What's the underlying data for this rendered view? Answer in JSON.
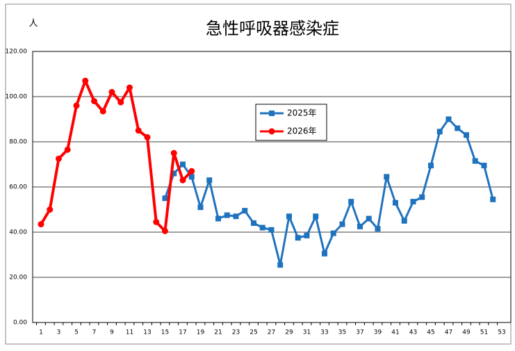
{
  "chart_data": {
    "type": "line",
    "title": "急性呼吸器感染症",
    "y_label": "人",
    "categories": [
      1,
      null,
      3,
      null,
      5,
      null,
      7,
      null,
      9,
      null,
      11,
      null,
      13,
      null,
      15,
      null,
      17,
      null,
      19,
      null,
      21,
      null,
      23,
      null,
      25,
      null,
      27,
      null,
      29,
      null,
      31,
      null,
      33,
      null,
      35,
      null,
      37,
      null,
      39,
      null,
      41,
      null,
      43,
      null,
      45,
      null,
      47,
      null,
      49,
      null,
      51,
      null,
      53
    ],
    "series": [
      {
        "name": "2025年",
        "color": "#1f72be",
        "marker": "square",
        "values": [
          null,
          null,
          null,
          null,
          null,
          null,
          null,
          null,
          null,
          null,
          null,
          null,
          null,
          null,
          55,
          66,
          70,
          64.5,
          51,
          63,
          46,
          47.5,
          47,
          49.5,
          44,
          42,
          41,
          25.5,
          47,
          37.5,
          38.5,
          47,
          30.5,
          39.5,
          43.5,
          53.5,
          42.5,
          46,
          41.5,
          64.5,
          53,
          45,
          53.5,
          55.5,
          69.5,
          84.5,
          90,
          86,
          83,
          71.5,
          69.5,
          54.5,
          null
        ]
      },
      {
        "name": "2026年",
        "color": "#ff0000",
        "marker": "circle",
        "values": [
          43.5,
          50,
          72.5,
          76.5,
          96,
          107,
          98,
          93.5,
          102,
          97.5,
          104,
          85,
          82,
          44.5,
          40.5,
          75,
          63,
          67,
          null,
          null,
          null,
          null,
          null,
          null,
          null,
          null,
          null,
          null,
          null,
          null,
          null,
          null,
          null,
          null,
          null,
          null,
          null,
          null,
          null,
          null,
          null,
          null,
          null,
          null,
          null,
          null,
          null,
          null,
          null,
          null,
          null,
          null,
          null
        ]
      }
    ],
    "ylim": [
      0,
      120
    ],
    "yticks": [
      {
        "value": 0,
        "label": "0.00"
      },
      {
        "value": 20,
        "label": "20.00"
      },
      {
        "value": 40,
        "label": "40.00"
      },
      {
        "value": 60,
        "label": "60.00"
      },
      {
        "value": 80,
        "label": "80.00"
      },
      {
        "value": 100,
        "label": "100.00"
      },
      {
        "value": 120,
        "label": "120.00"
      }
    ],
    "grid": true,
    "legend": "center"
  }
}
